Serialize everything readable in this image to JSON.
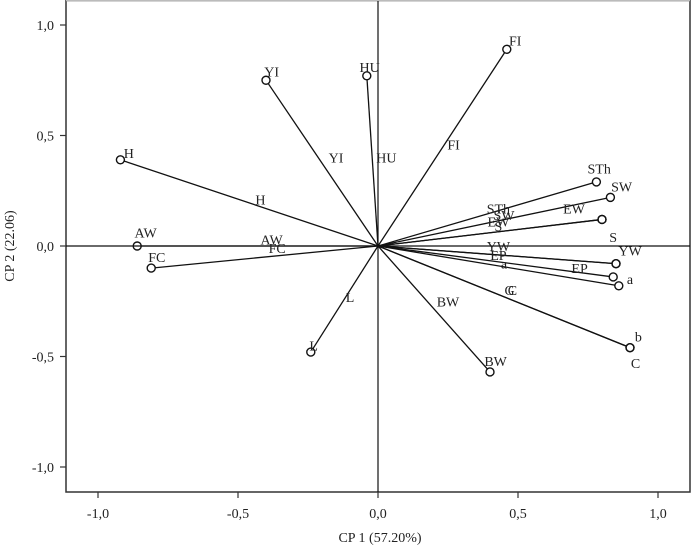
{
  "chart_data": {
    "type": "scatter",
    "subtype": "pca-biplot-loadings",
    "title": "",
    "xlabel": "CP 1 (57.20%)",
    "ylabel": "CP 2 (22.06)",
    "xlim": [
      -1.1,
      1.1
    ],
    "ylim": [
      -1.12,
      1.12
    ],
    "xticks": [
      -1.0,
      -0.5,
      0.0,
      0.5,
      1.0
    ],
    "xtick_labels": [
      "-1,0",
      "-0,5",
      "0,0",
      "0,5",
      "1,0"
    ],
    "yticks": [
      1.0,
      0.5,
      0.0,
      -0.5,
      -1.0
    ],
    "ytick_labels": [
      "1,0",
      "0,5",
      "0,0",
      "-0,5",
      "-1,0"
    ],
    "grid": false,
    "legend": null,
    "reference_lines": {
      "x": 0,
      "y": 0
    },
    "vectors": [
      {
        "name": "FI",
        "x": 0.46,
        "y": 0.89
      },
      {
        "name": "HU",
        "x": -0.04,
        "y": 0.77
      },
      {
        "name": "YI",
        "x": -0.4,
        "y": 0.75
      },
      {
        "name": "H",
        "x": -0.92,
        "y": 0.39
      },
      {
        "name": "AW",
        "x": -0.86,
        "y": 0.0
      },
      {
        "name": "FC",
        "x": -0.81,
        "y": -0.1
      },
      {
        "name": "L",
        "x": -0.24,
        "y": -0.48
      },
      {
        "name": "BW",
        "x": 0.4,
        "y": -0.57
      },
      {
        "name": "STh",
        "x": 0.78,
        "y": 0.29
      },
      {
        "name": "SW",
        "x": 0.83,
        "y": 0.22
      },
      {
        "name": "EW",
        "x": 0.8,
        "y": 0.12
      },
      {
        "name": "S",
        "x": 0.8,
        "y": 0.12
      },
      {
        "name": "YW",
        "x": 0.85,
        "y": -0.08
      },
      {
        "name": "EP",
        "x": 0.85,
        "y": -0.08
      },
      {
        "name": "a",
        "x": 0.84,
        "y": -0.14
      },
      {
        "name": "b",
        "x": 0.86,
        "y": -0.18
      },
      {
        "name": "C",
        "x": 0.9,
        "y": -0.46
      },
      {
        "name": "G",
        "x": 0.9,
        "y": -0.46
      }
    ],
    "point_labels": [
      {
        "text": "FI",
        "x": 0.49,
        "y": 0.93
      },
      {
        "text": "HU",
        "x": -0.03,
        "y": 0.81
      },
      {
        "text": "YI",
        "x": -0.38,
        "y": 0.79
      },
      {
        "text": "H",
        "x": -0.89,
        "y": 0.42
      },
      {
        "text": "AW",
        "x": -0.83,
        "y": 0.06
      },
      {
        "text": "FC",
        "x": -0.79,
        "y": -0.05
      },
      {
        "text": "L",
        "x": -0.23,
        "y": -0.45
      },
      {
        "text": "BW",
        "x": 0.42,
        "y": -0.52
      },
      {
        "text": "STh",
        "x": 0.79,
        "y": 0.35
      },
      {
        "text": "SW",
        "x": 0.87,
        "y": 0.27
      },
      {
        "text": "EW",
        "x": 0.7,
        "y": 0.17
      },
      {
        "text": "S",
        "x": 0.84,
        "y": 0.04
      },
      {
        "text": "YW",
        "x": 0.9,
        "y": -0.02
      },
      {
        "text": "EP",
        "x": 0.72,
        "y": -0.1
      },
      {
        "text": "a",
        "x": 0.9,
        "y": -0.15
      },
      {
        "text": "b",
        "x": 0.93,
        "y": -0.41
      },
      {
        "text": "C",
        "x": 0.92,
        "y": -0.53
      }
    ],
    "midline_labels": [
      {
        "text": "FI",
        "x": 0.27,
        "y": 0.46
      },
      {
        "text": "HU",
        "x": 0.03,
        "y": 0.4
      },
      {
        "text": "YI",
        "x": -0.15,
        "y": 0.4
      },
      {
        "text": "H",
        "x": -0.42,
        "y": 0.21
      },
      {
        "text": "AW",
        "x": -0.38,
        "y": 0.03
      },
      {
        "text": "FC",
        "x": -0.36,
        "y": -0.01
      },
      {
        "text": "L",
        "x": -0.1,
        "y": -0.23
      },
      {
        "text": "BW",
        "x": 0.25,
        "y": -0.25
      },
      {
        "text": "STh",
        "x": 0.43,
        "y": 0.17
      },
      {
        "text": "SW",
        "x": 0.45,
        "y": 0.14
      },
      {
        "text": "EW",
        "x": 0.43,
        "y": 0.11
      },
      {
        "text": "S",
        "x": 0.43,
        "y": 0.09
      },
      {
        "text": "YW",
        "x": 0.43,
        "y": 0.0
      },
      {
        "text": "EP",
        "x": 0.43,
        "y": -0.04
      },
      {
        "text": "a",
        "x": 0.45,
        "y": -0.08
      },
      {
        "text": "G",
        "x": 0.47,
        "y": -0.2
      },
      {
        "text": "C",
        "x": 0.48,
        "y": -0.2
      }
    ]
  },
  "axes": {
    "xlabel": "CP 1 (57.20%)",
    "ylabel": "CP 2 (22.06)"
  }
}
